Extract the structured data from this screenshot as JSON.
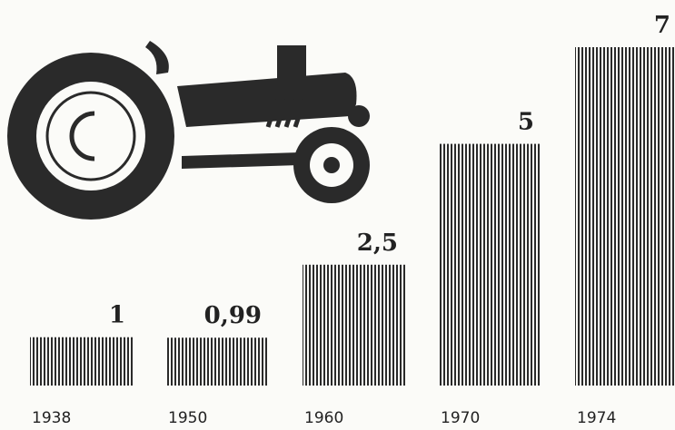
{
  "chart_data": {
    "type": "bar",
    "categories": [
      "1938",
      "1950",
      "1960",
      "1970",
      "1974"
    ],
    "values": [
      1,
      0.99,
      2.5,
      5,
      7
    ],
    "value_labels": [
      "1",
      "0,99",
      "2,5",
      "5",
      "7"
    ],
    "color": "#2a2a2a"
  }
}
